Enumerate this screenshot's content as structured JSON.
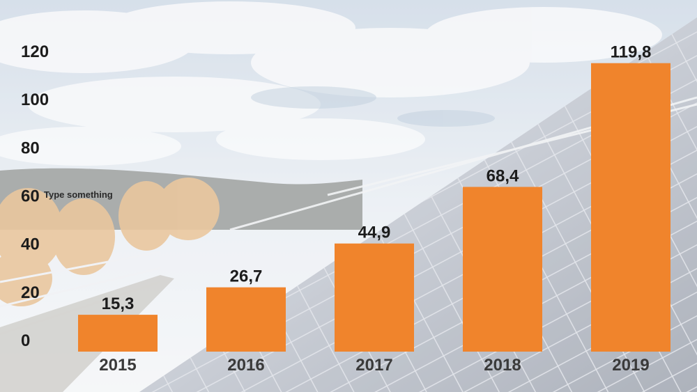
{
  "chart_data": {
    "type": "bar",
    "categories": [
      "2015",
      "2016",
      "2017",
      "2018",
      "2019"
    ],
    "values": [
      15.3,
      26.7,
      44.9,
      68.4,
      119.8
    ],
    "value_labels": [
      "15,3",
      "26,7",
      "44,9",
      "68,4",
      "119,8"
    ],
    "yticks": [
      "0",
      "20",
      "40",
      "60",
      "80",
      "100",
      "120"
    ],
    "ylim": [
      0,
      120
    ],
    "grid": false,
    "bar_color": "#f0842c"
  },
  "text_placeholder": "Type something",
  "background": "solar-panels-photo"
}
